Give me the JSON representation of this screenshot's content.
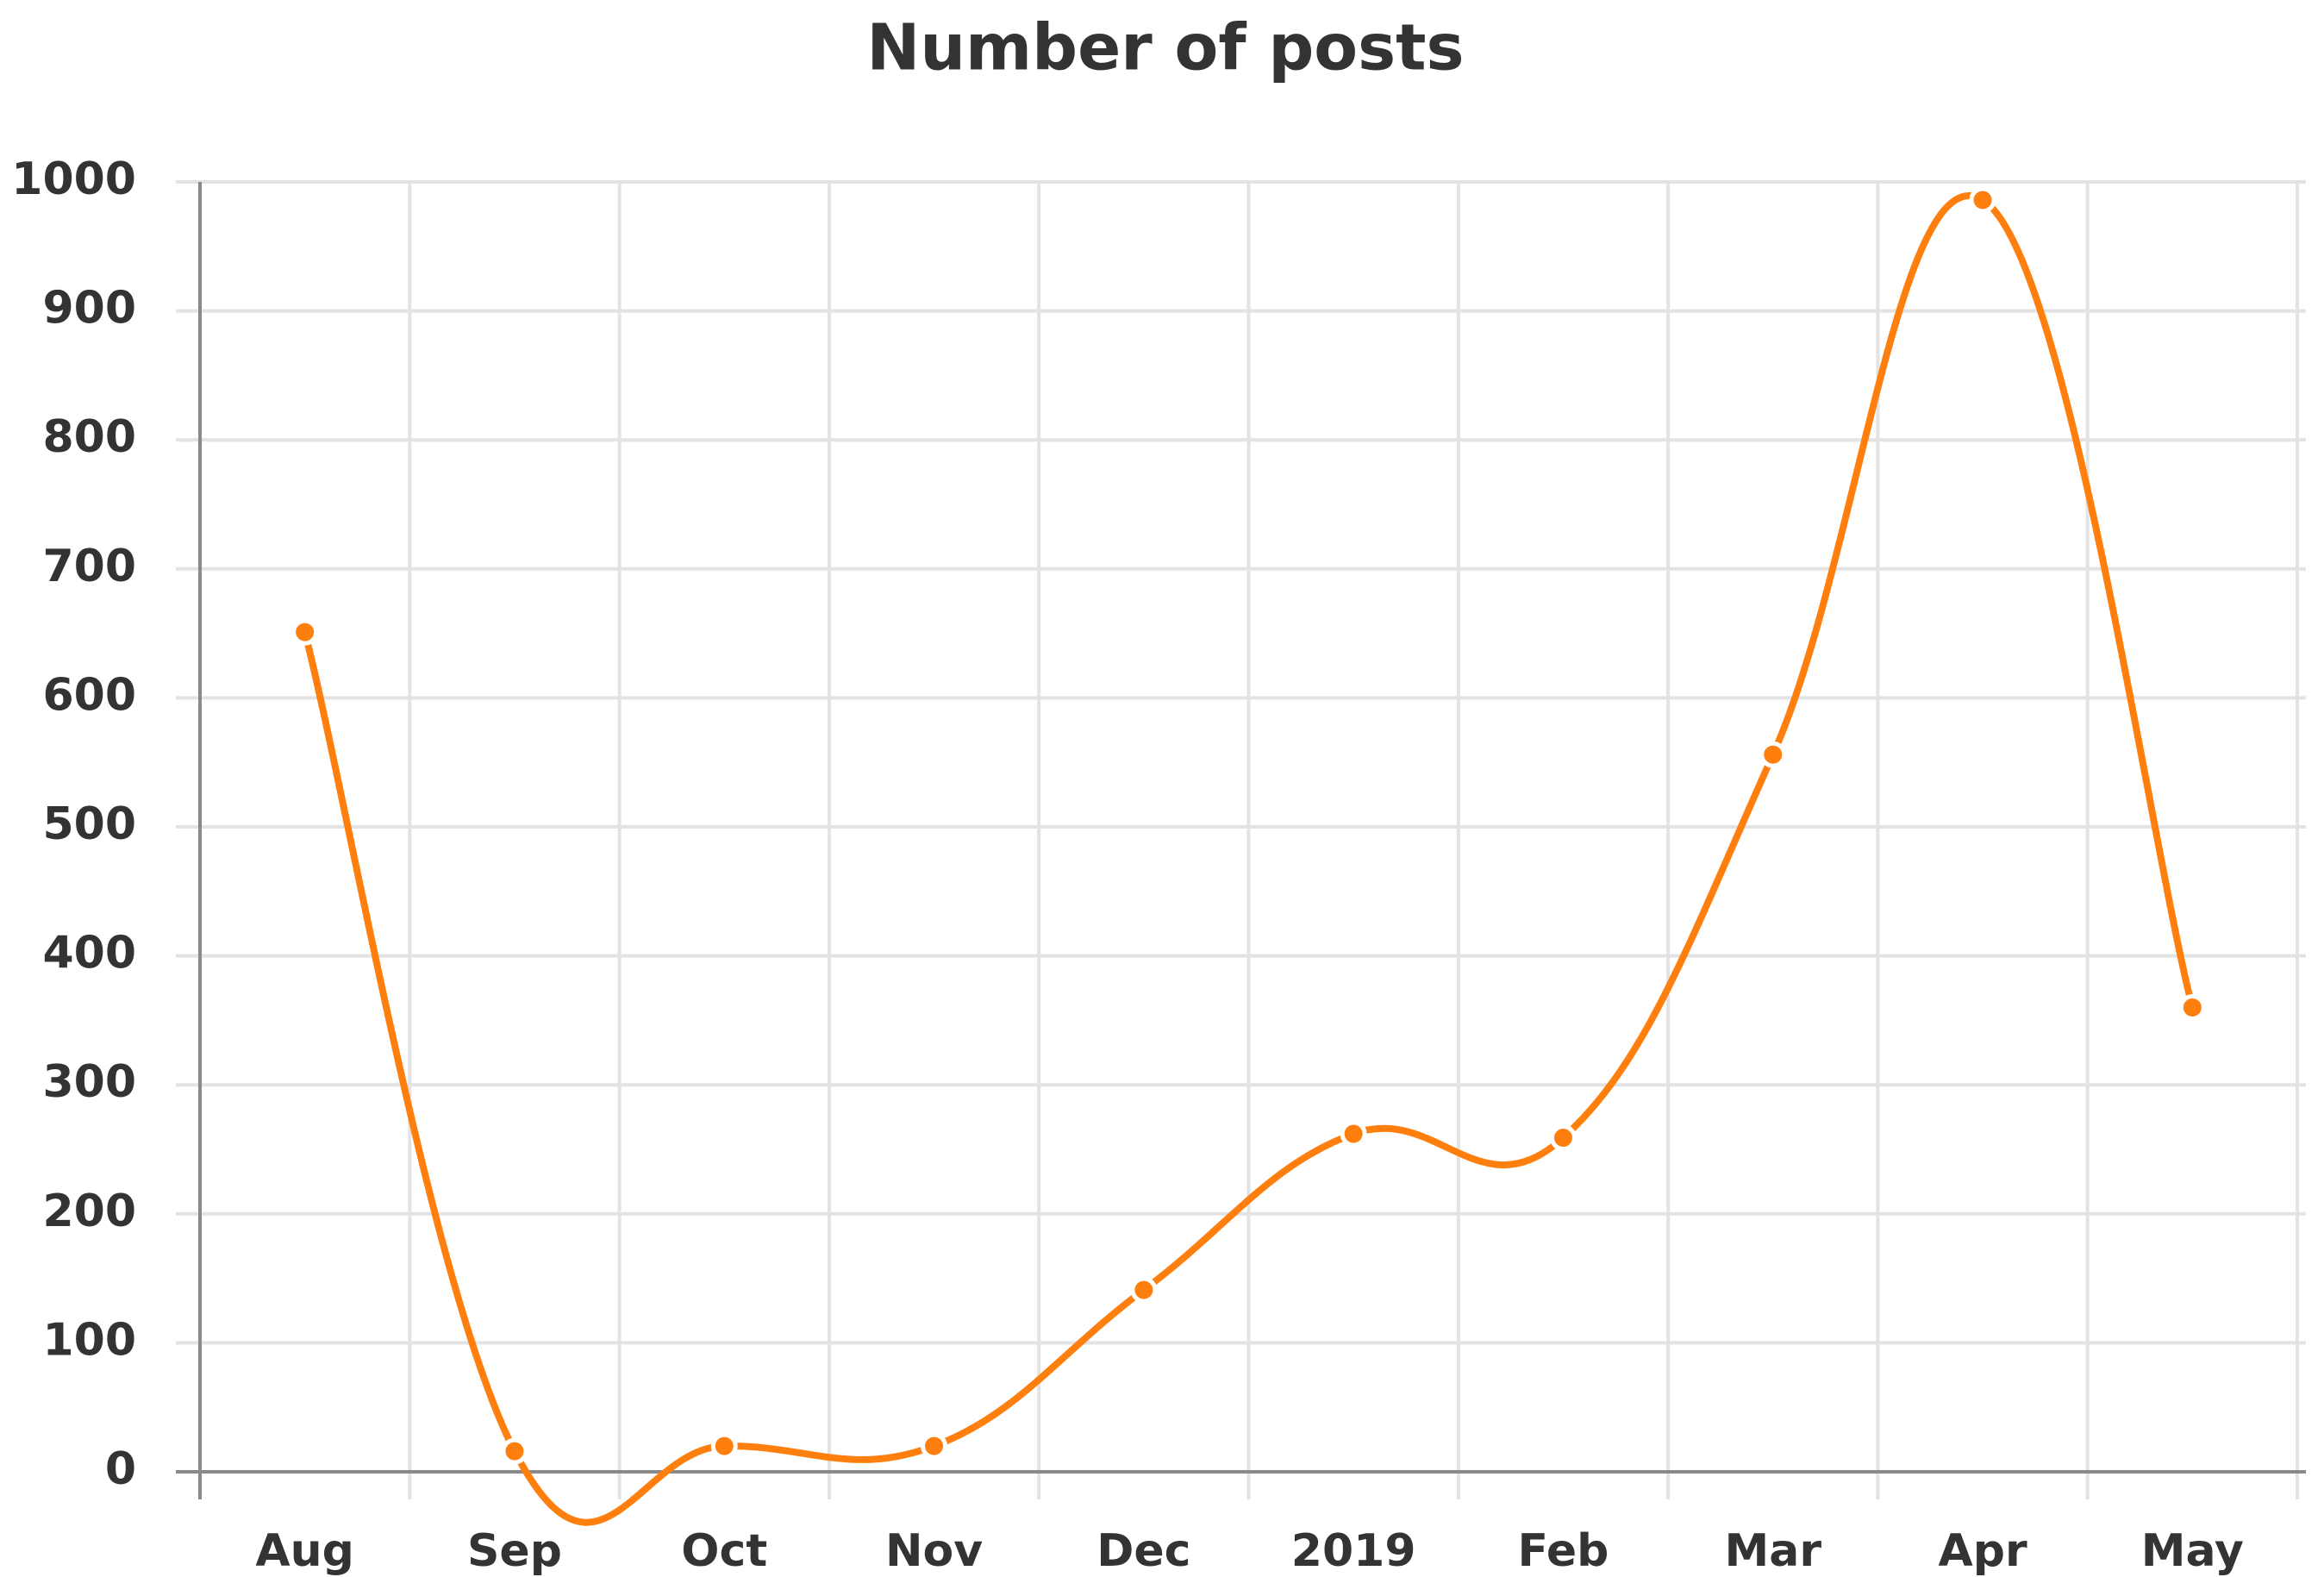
{
  "chart_data": {
    "type": "line",
    "title": "Number of posts",
    "categories": [
      "Aug",
      "Sep",
      "Oct",
      "Nov",
      "Dec",
      "2019",
      "Feb",
      "Mar",
      "Apr",
      "May"
    ],
    "series": [
      {
        "name": "Number of posts",
        "color": "#ff7f0e",
        "values": [
          651,
          16,
          20,
          20,
          141,
          262,
          259,
          556,
          986,
          360
        ]
      }
    ],
    "ylim": [
      0,
      1000
    ],
    "yticks": [
      0,
      100,
      200,
      300,
      400,
      500,
      600,
      700,
      800,
      900,
      1000
    ],
    "grid": true,
    "legend": false
  }
}
